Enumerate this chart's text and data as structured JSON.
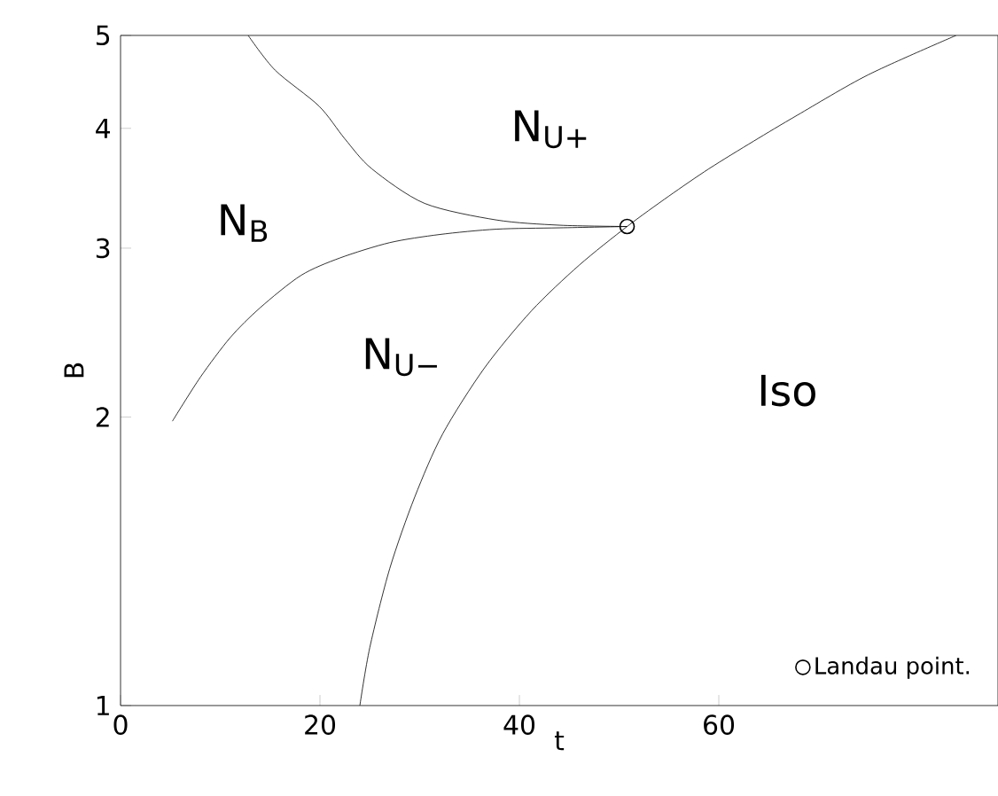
{
  "chart_data": {
    "type": "line",
    "xlabel": "t",
    "ylabel": "B",
    "log": "y",
    "xlim": [
      0,
      88
    ],
    "ylim": [
      1,
      5
    ],
    "xticks": [
      0,
      20,
      40,
      60
    ],
    "yticks": [
      1,
      2,
      3,
      4,
      5
    ],
    "grid": false,
    "legend": "bottom right",
    "marker": "none",
    "line_style": "solid",
    "series": [
      {
        "color": "#000000",
        "x": [
          12.8,
          15.5,
          19.9,
          22.5,
          25.2,
          30.5,
          37.7,
          44,
          50.8
        ],
        "values": [
          5,
          4.6,
          4.22,
          3.9,
          3.63,
          3.34,
          3.21,
          3.17,
          3.16
        ]
      },
      {
        "color": "#000000",
        "x": [
          5.2,
          8,
          11,
          14,
          18.1,
          22,
          27,
          32,
          37.7,
          44,
          50.8
        ],
        "values": [
          1.98,
          2.2,
          2.42,
          2.6,
          2.81,
          2.93,
          3.04,
          3.1,
          3.14,
          3.15,
          3.16
        ]
      },
      {
        "color": "#000000",
        "x": [
          24,
          25,
          27,
          29.5,
          32.3,
          36.5,
          41.2,
          46,
          50.8,
          55,
          59,
          63.5,
          67.9,
          75,
          83.8
        ],
        "values": [
          1,
          1.15,
          1.39,
          1.65,
          1.92,
          2.25,
          2.58,
          2.88,
          3.16,
          3.4,
          3.63,
          3.88,
          4.13,
          4.55,
          5
        ]
      },
      {
        "type": "scatter",
        "name": "Landau point.",
        "color": "#000000",
        "marker": "circle",
        "x": [
          50.8
        ],
        "values": [
          3.16
        ]
      }
    ],
    "annotations": [
      "N$_{B}$",
      "N$_{U+}$",
      "N$_{U−}$",
      "Iso"
    ]
  }
}
